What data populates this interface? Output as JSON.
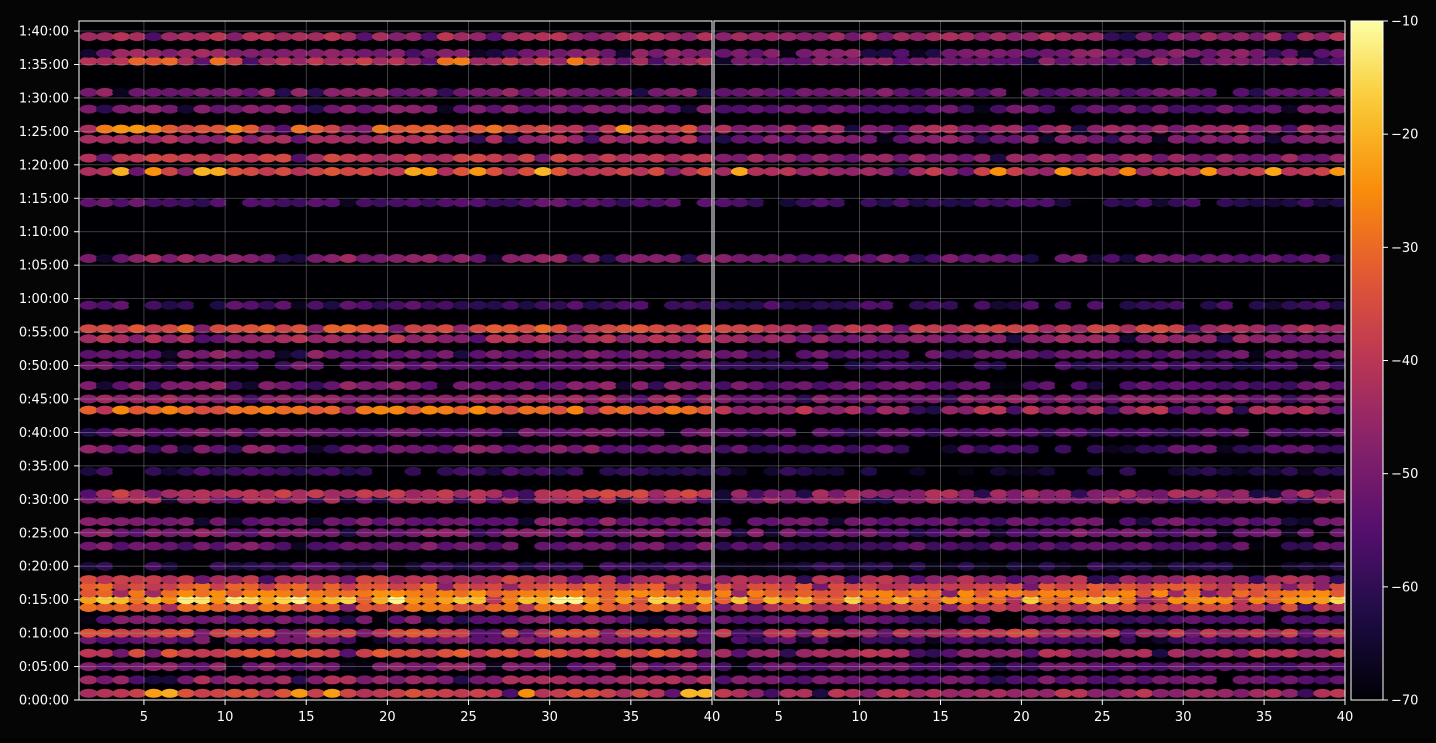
{
  "chart_data": {
    "type": "heatmap",
    "title": "",
    "xlabel": "",
    "ylabel": "",
    "grid": true,
    "panels": [
      {
        "name": "",
        "xlim": [
          1,
          40
        ]
      },
      {
        "name": "",
        "xlim": [
          1,
          40
        ]
      }
    ],
    "x_ticks": [
      5,
      10,
      15,
      20,
      25,
      30,
      35,
      40
    ],
    "y_ticks": [
      "0:00:00",
      "0:05:00",
      "0:10:00",
      "0:15:00",
      "0:20:00",
      "0:25:00",
      "0:30:00",
      "0:35:00",
      "0:40:00",
      "0:45:00",
      "0:50:00",
      "0:55:00",
      "1:00:00",
      "1:05:00",
      "1:10:00",
      "1:15:00",
      "1:20:00",
      "1:25:00",
      "1:30:00",
      "1:35:00",
      "1:40:00"
    ],
    "y_tick_seconds": [
      0,
      300,
      600,
      900,
      1200,
      1500,
      1800,
      2100,
      2400,
      2700,
      3000,
      3300,
      3600,
      3900,
      4200,
      4500,
      4800,
      5100,
      5400,
      5700,
      6000
    ],
    "ylim_seconds": [
      0,
      6090
    ],
    "colorbar": {
      "colormap": "inferno",
      "min": -70,
      "max": -10,
      "ticks": [
        "−10",
        "−20",
        "−30",
        "−40",
        "−50",
        "−60",
        "−70"
      ],
      "tick_values": [
        -10,
        -20,
        -30,
        -40,
        -50,
        -60,
        -70
      ]
    },
    "bands": [
      {
        "t": 60,
        "left": -38,
        "right": -44,
        "peak_left": -22
      },
      {
        "t": 180,
        "left": -46,
        "right": -52
      },
      {
        "t": 300,
        "left": -50,
        "right": -54
      },
      {
        "t": 420,
        "left": -36,
        "right": -44
      },
      {
        "t": 540,
        "left": -52,
        "right": -56
      },
      {
        "t": 600,
        "left": -36,
        "right": -40
      },
      {
        "t": 720,
        "left": -52,
        "right": -56
      },
      {
        "t": 830,
        "left": -32,
        "right": -38
      },
      {
        "t": 900,
        "left": -22,
        "right": -28,
        "peak_left": -14,
        "peak_right": -18
      },
      {
        "t": 960,
        "left": -28,
        "right": -30
      },
      {
        "t": 1020,
        "left": -34,
        "right": -36
      },
      {
        "t": 1080,
        "left": -40,
        "right": -44
      },
      {
        "t": 1200,
        "left": -60,
        "right": -64
      },
      {
        "t": 1380,
        "left": -52,
        "right": -56
      },
      {
        "t": 1500,
        "left": -50,
        "right": -52
      },
      {
        "t": 1600,
        "left": -50,
        "right": -54
      },
      {
        "t": 1800,
        "left": -46,
        "right": -48
      },
      {
        "t": 1850,
        "left": -40,
        "right": -46
      },
      {
        "t": 2050,
        "left": -60,
        "right": -64
      },
      {
        "t": 2250,
        "left": -50,
        "right": -56
      },
      {
        "t": 2400,
        "left": -52,
        "right": -56
      },
      {
        "t": 2600,
        "left": -30,
        "right": -44
      },
      {
        "t": 2700,
        "left": -46,
        "right": -48
      },
      {
        "t": 2820,
        "left": -50,
        "right": -54
      },
      {
        "t": 3000,
        "left": -54,
        "right": -58
      },
      {
        "t": 3100,
        "left": -50,
        "right": -54
      },
      {
        "t": 3240,
        "left": -44,
        "right": -48
      },
      {
        "t": 3330,
        "left": -34,
        "right": -40
      },
      {
        "t": 3540,
        "left": -58,
        "right": -60
      },
      {
        "t": 3960,
        "left": -48,
        "right": -52
      },
      {
        "t": 4460,
        "left": -56,
        "right": -60
      },
      {
        "t": 4740,
        "left": -38,
        "right": -42,
        "peak_left": -22,
        "peak_right": -24
      },
      {
        "t": 4860,
        "left": -40,
        "right": -48
      },
      {
        "t": 5030,
        "left": -44,
        "right": -50
      },
      {
        "t": 5120,
        "left": -36,
        "right": -46,
        "peak_left": -26
      },
      {
        "t": 5300,
        "left": -50,
        "right": -54
      },
      {
        "t": 5450,
        "left": -50,
        "right": -52
      },
      {
        "t": 5730,
        "left": -42,
        "right": -50,
        "peak_left": -30
      },
      {
        "t": 5800,
        "left": -48,
        "right": -50
      },
      {
        "t": 5950,
        "left": -44,
        "right": -46
      }
    ]
  }
}
